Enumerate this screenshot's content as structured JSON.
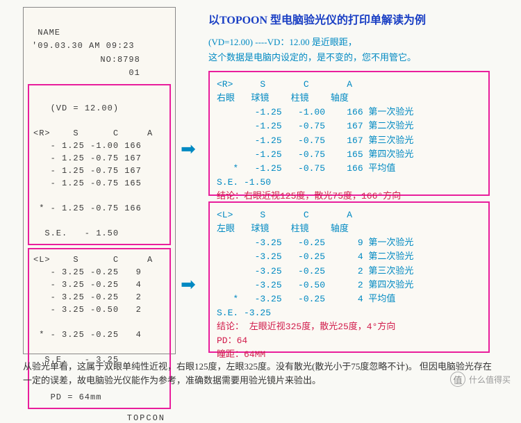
{
  "receipt": {
    "name_label": "NAME",
    "datetime": "'09.03.30 AM 09:23",
    "no": "NO:8798",
    "no_sub": "01",
    "vd_line": "(VD = 12.00)",
    "r_header": "<R>    S      C     A",
    "r_rows": "   - 1.25 -1.00 166\n   - 1.25 -0.75 167\n   - 1.25 -0.75 167\n   - 1.25 -0.75 165\n\n * - 1.25 -0.75 166\n\n  S.E.   - 1.50",
    "l_header": "<L>    S      C     A",
    "l_rows": "   - 3.25 -0.25   9\n   - 3.25 -0.25   4\n   - 3.25 -0.25   2\n   - 3.25 -0.50   2\n\n * - 3.25 -0.25   4\n\n  S.E.   - 3.25\n\n\n   PD = 64mm",
    "footer": "TOPCON"
  },
  "title": "以TOPOON 型电脑验光仪的打印单解读为例",
  "vd_note_1": "(VD=12.00) ----VD：12.00 是近眼距，",
  "vd_note_2": "这个数据是电脑内设定的，是不变的，您不用管它。",
  "panel_r": {
    "head": "<R>     S       C       A\n右眼   球镜    柱镜    轴度",
    "rows": "       -1.25   -1.00    166 第一次验光\n       -1.25   -0.75    167 第二次验光\n       -1.25   -0.75    167 第三次验光\n       -1.25   -0.75    165 第四次验光\n   *   -1.25   -0.75    166 平均值\nS.E. -1.50",
    "conclusion": "结论：右眼近视125度，散光75度，166°方向"
  },
  "panel_l": {
    "head": "<L>     S       C       A\n左眼   球镜    柱镜    轴度",
    "rows": "       -3.25   -0.25      9 第一次验光\n       -3.25   -0.25      4 第二次验光\n       -3.25   -0.25      2 第三次验光\n       -3.25   -0.50      2 第四次验光\n   *   -3.25   -0.25      4 平均值\nS.E. -3.25",
    "conclusion": "结论： 左眼近视325度，散光25度，4°方向",
    "pd": "PD：64",
    "pd2": "瞳距：64MM"
  },
  "bottom": "从验光单看，这属于双眼单纯性近视，右眼125度，左眼325度。没有散光(散光小于75度忽略不计)。\n但因电脑验光存在一定的误差，故电脑验光仪能作为参考，准确数据需要用验光镜片来验出。",
  "watermark": "什么值得买",
  "wm_icon": "值"
}
